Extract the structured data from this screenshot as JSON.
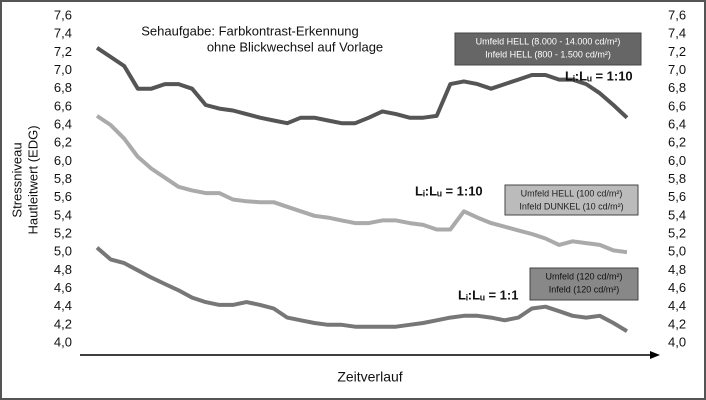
{
  "chart_data": {
    "type": "line",
    "title": [
      "Sehaufgabe: Farbkontrast-Erkennung",
      "ohne Blickwechsel auf Vorlage"
    ],
    "y_label": [
      "Stressniveau",
      "Hautleitwert (EDG)"
    ],
    "x_label": "Zeitverlauf",
    "categories": [
      null,
      null,
      null,
      null,
      null,
      null,
      null,
      null,
      null,
      null,
      null,
      null,
      null,
      null,
      null,
      null,
      null,
      null,
      null,
      null,
      null,
      null,
      null,
      null,
      null,
      null,
      null,
      null,
      null,
      null,
      null,
      null,
      null,
      null,
      null,
      null,
      null,
      null,
      null,
      null
    ],
    "ylim": [
      4.0,
      7.6
    ],
    "yticks": [
      {
        "value": 4.0,
        "label": "4,0"
      },
      {
        "value": 4.2,
        "label": "4,2"
      },
      {
        "value": 4.4,
        "label": "4,4"
      },
      {
        "value": 4.6,
        "label": "4,6"
      },
      {
        "value": 4.8,
        "label": "4,8"
      },
      {
        "value": 5.0,
        "label": "5,0"
      },
      {
        "value": 5.2,
        "label": "5,2"
      },
      {
        "value": 5.4,
        "label": "5,4"
      },
      {
        "value": 5.6,
        "label": "5,6"
      },
      {
        "value": 5.8,
        "label": "5,8"
      },
      {
        "value": 6.0,
        "label": "6,0"
      },
      {
        "value": 6.2,
        "label": "6,2"
      },
      {
        "value": 6.4,
        "label": "6,4"
      },
      {
        "value": 6.6,
        "label": "6,6"
      },
      {
        "value": 6.8,
        "label": "6,8"
      },
      {
        "value": 7.0,
        "label": "7,0"
      },
      {
        "value": 7.2,
        "label": "7,2"
      },
      {
        "value": 7.4,
        "label": "7,4"
      },
      {
        "value": 7.6,
        "label": "7,6"
      }
    ],
    "y2lim": [
      4.0,
      7.6
    ],
    "y2ticks": [
      {
        "value": 4.0,
        "label": "4,0"
      },
      {
        "value": 4.2,
        "label": "4,2"
      },
      {
        "value": 4.4,
        "label": "4,4"
      },
      {
        "value": 4.6,
        "label": "4,6"
      },
      {
        "value": 4.8,
        "label": "4,8"
      },
      {
        "value": 5.0,
        "label": "5,0"
      },
      {
        "value": 5.2,
        "label": "5,2"
      },
      {
        "value": 5.4,
        "label": "5,4"
      },
      {
        "value": 5.6,
        "label": "5,6"
      },
      {
        "value": 5.8,
        "label": "5,8"
      },
      {
        "value": 6.0,
        "label": "6,0"
      },
      {
        "value": 6.2,
        "label": "6,2"
      },
      {
        "value": 6.4,
        "label": "6,4"
      },
      {
        "value": 6.6,
        "label": "6,6"
      },
      {
        "value": 6.8,
        "label": "6,8"
      },
      {
        "value": 7.0,
        "label": "7,0"
      },
      {
        "value": 7.2,
        "label": "7,2"
      },
      {
        "value": 7.4,
        "label": "7,4"
      },
      {
        "value": 7.6,
        "label": "7,6"
      }
    ],
    "series": [
      {
        "name": "Lᵢ:Lᵤ = 1:10",
        "color": "#555555",
        "box_color": "#666666",
        "box_text_color": "#ffffff",
        "legend_box": [
          "Umfeld HELL (8.000 - 14.000 cd/m²)",
          "Infeld HELL (800 - 1.500 cd/m²)"
        ],
        "values": [
          7.25,
          7.15,
          7.05,
          6.8,
          6.8,
          6.85,
          6.85,
          6.8,
          6.62,
          6.58,
          6.56,
          6.52,
          6.48,
          6.45,
          6.42,
          6.48,
          6.48,
          6.45,
          6.42,
          6.42,
          6.48,
          6.55,
          6.52,
          6.48,
          6.48,
          6.5,
          6.85,
          6.88,
          6.85,
          6.8,
          6.85,
          6.9,
          6.95,
          6.95,
          6.9,
          6.9,
          6.85,
          6.75,
          6.62,
          6.48
        ]
      },
      {
        "name": "Lᵢ:Lᵤ = 1:10",
        "color": "#aaaaaa",
        "box_color": "#bbbbbb",
        "box_text_color": "#222222",
        "legend_box": [
          "Umfeld HELL (100 cd/m²)",
          "Infeld DUNKEL (10 cd/m²)"
        ],
        "values": [
          6.5,
          6.4,
          6.25,
          6.05,
          5.92,
          5.82,
          5.72,
          5.68,
          5.65,
          5.65,
          5.58,
          5.56,
          5.55,
          5.55,
          5.5,
          5.45,
          5.4,
          5.38,
          5.35,
          5.32,
          5.32,
          5.35,
          5.35,
          5.32,
          5.3,
          5.25,
          5.25,
          5.45,
          5.38,
          5.32,
          5.28,
          5.24,
          5.2,
          5.15,
          5.08,
          5.12,
          5.1,
          5.08,
          5.02,
          5.0
        ]
      },
      {
        "name": "Lᵢ:Lᵤ = 1:1",
        "color": "#777777",
        "box_color": "#888888",
        "box_text_color": "#111111",
        "legend_box": [
          "Umfeld (120 cd/m²)",
          "Infeld (120 cd/m²)"
        ],
        "values": [
          5.05,
          4.92,
          4.88,
          4.8,
          4.72,
          4.65,
          4.58,
          4.5,
          4.45,
          4.42,
          4.42,
          4.45,
          4.42,
          4.38,
          4.28,
          4.25,
          4.22,
          4.2,
          4.2,
          4.18,
          4.18,
          4.18,
          4.18,
          4.2,
          4.22,
          4.25,
          4.28,
          4.3,
          4.3,
          4.28,
          4.25,
          4.28,
          4.38,
          4.4,
          4.35,
          4.3,
          4.28,
          4.3,
          4.22,
          4.13
        ]
      }
    ]
  }
}
